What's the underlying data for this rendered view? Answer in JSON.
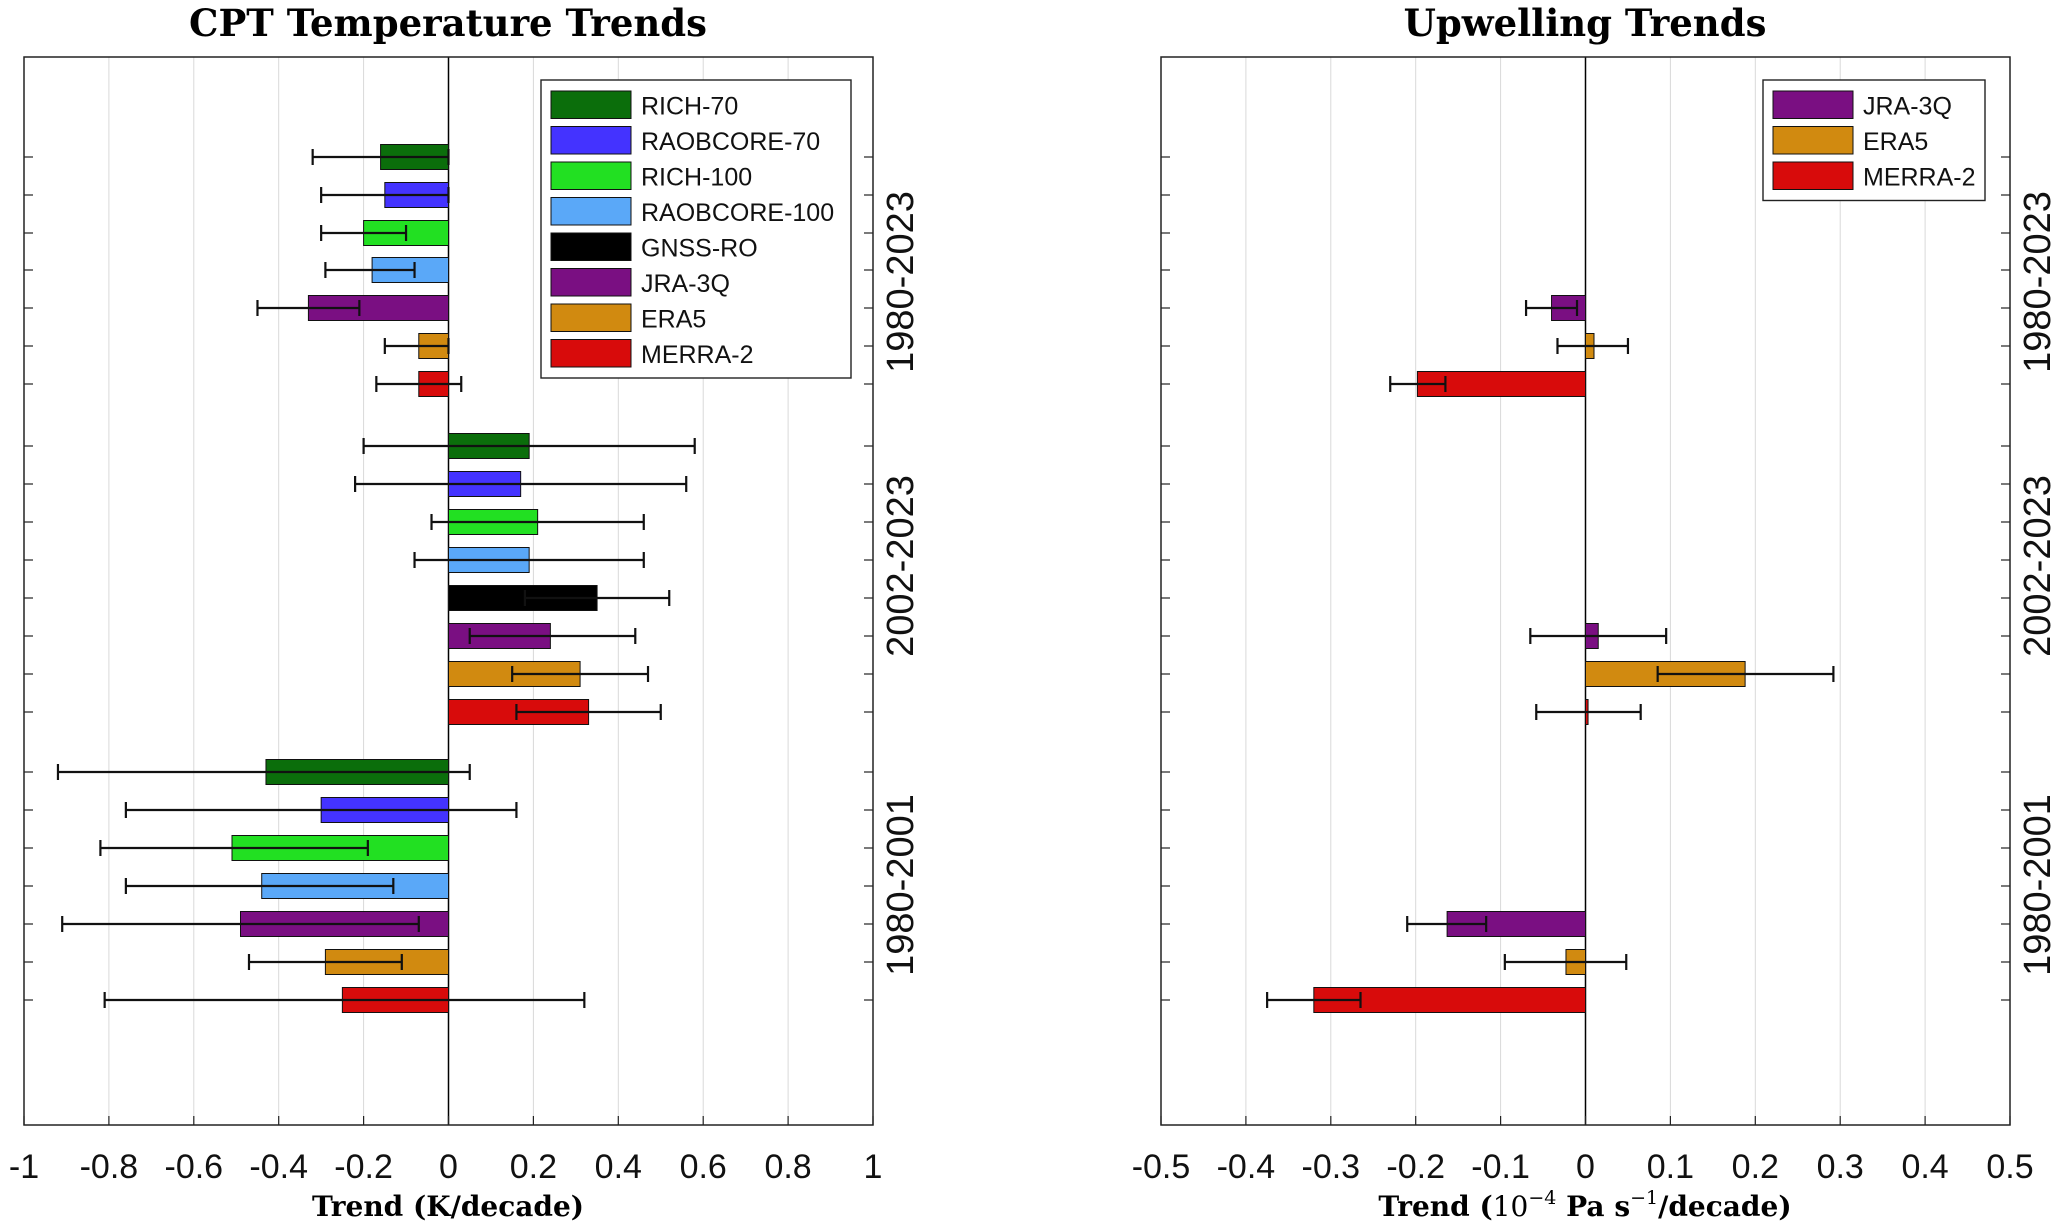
{
  "chart_data": [
    {
      "type": "bar",
      "orientation": "horizontal",
      "title": "CPT Temperature Trends",
      "xlabel": "Trend (K/decade)",
      "xlim": [
        -1,
        1
      ],
      "xticks": [
        "-1",
        "-0.8",
        "-0.6",
        "-0.4",
        "-0.2",
        "0",
        "0.2",
        "0.4",
        "0.6",
        "0.8",
        "1"
      ],
      "grid": true,
      "legend_position": "top-right",
      "periods": [
        "1980-2023",
        "2002-2023",
        "1980-2001"
      ],
      "series": [
        {
          "name": "RICH-70",
          "color": "#0b6e0b",
          "values": [
            -0.16,
            0.19,
            -0.43
          ],
          "err_lo": [
            -0.32,
            -0.2,
            -0.92
          ],
          "err_hi": [
            0.0,
            0.58,
            0.05
          ]
        },
        {
          "name": "RAOBCORE-70",
          "color": "#4433ff",
          "values": [
            -0.15,
            0.17,
            -0.3
          ],
          "err_lo": [
            -0.3,
            -0.22,
            -0.76
          ],
          "err_hi": [
            0.0,
            0.56,
            0.16
          ]
        },
        {
          "name": "RICH-100",
          "color": "#22e022",
          "values": [
            -0.2,
            0.21,
            -0.51
          ],
          "err_lo": [
            -0.3,
            -0.04,
            -0.82
          ],
          "err_hi": [
            -0.1,
            0.46,
            -0.19
          ]
        },
        {
          "name": "RAOBCORE-100",
          "color": "#5aa8f8",
          "values": [
            -0.18,
            0.19,
            -0.44
          ],
          "err_lo": [
            -0.29,
            -0.08,
            -0.76
          ],
          "err_hi": [
            -0.08,
            0.46,
            -0.13
          ]
        },
        {
          "name": "GNSS-RO",
          "color": "#000000",
          "values": [
            null,
            0.35,
            null
          ],
          "err_lo": [
            null,
            0.18,
            null
          ],
          "err_hi": [
            null,
            0.52,
            null
          ]
        },
        {
          "name": "JRA-3Q",
          "color": "#7a0f82",
          "values": [
            -0.33,
            0.24,
            -0.49
          ],
          "err_lo": [
            -0.45,
            0.05,
            -0.91
          ],
          "err_hi": [
            -0.21,
            0.44,
            -0.07
          ]
        },
        {
          "name": "ERA5",
          "color": "#d18a10",
          "values": [
            -0.07,
            0.31,
            -0.29
          ],
          "err_lo": [
            -0.15,
            0.15,
            -0.47
          ],
          "err_hi": [
            0.0,
            0.47,
            -0.11
          ]
        },
        {
          "name": "MERRA-2",
          "color": "#d80b0b",
          "values": [
            -0.07,
            0.33,
            -0.25
          ],
          "err_lo": [
            -0.17,
            0.16,
            -0.81
          ],
          "err_hi": [
            0.03,
            0.5,
            0.32
          ]
        }
      ]
    },
    {
      "type": "bar",
      "orientation": "horizontal",
      "title": "Upwelling Trends",
      "xlabel_main": "Trend (",
      "xlabel_base": "10",
      "xlabel_exp": "−4",
      "xlabel_units": " Pa s",
      "xlabel_exp2": "−1",
      "xlabel_end": "/decade)",
      "xlim": [
        -0.5,
        0.5
      ],
      "xticks": [
        "-0.5",
        "-0.4",
        "-0.3",
        "-0.2",
        "-0.1",
        "0",
        "0.1",
        "0.2",
        "0.3",
        "0.4",
        "0.5"
      ],
      "grid": true,
      "legend_position": "top-right",
      "periods": [
        "1980-2023",
        "2002-2023",
        "1980-2001"
      ],
      "series": [
        {
          "name": "JRA-3Q",
          "color": "#7a0f82",
          "values": [
            -0.04,
            0.015,
            -0.163
          ],
          "err_lo": [
            -0.07,
            -0.065,
            -0.21
          ],
          "err_hi": [
            -0.01,
            0.095,
            -0.117
          ]
        },
        {
          "name": "ERA5",
          "color": "#d18a10",
          "values": [
            0.01,
            0.188,
            -0.023
          ],
          "err_lo": [
            -0.033,
            0.085,
            -0.095
          ],
          "err_hi": [
            0.05,
            0.292,
            0.048
          ]
        },
        {
          "name": "MERRA-2",
          "color": "#d80b0b",
          "values": [
            -0.198,
            0.003,
            -0.32
          ],
          "err_lo": [
            -0.23,
            -0.058,
            -0.375
          ],
          "err_hi": [
            -0.165,
            0.065,
            -0.265
          ]
        }
      ]
    }
  ]
}
